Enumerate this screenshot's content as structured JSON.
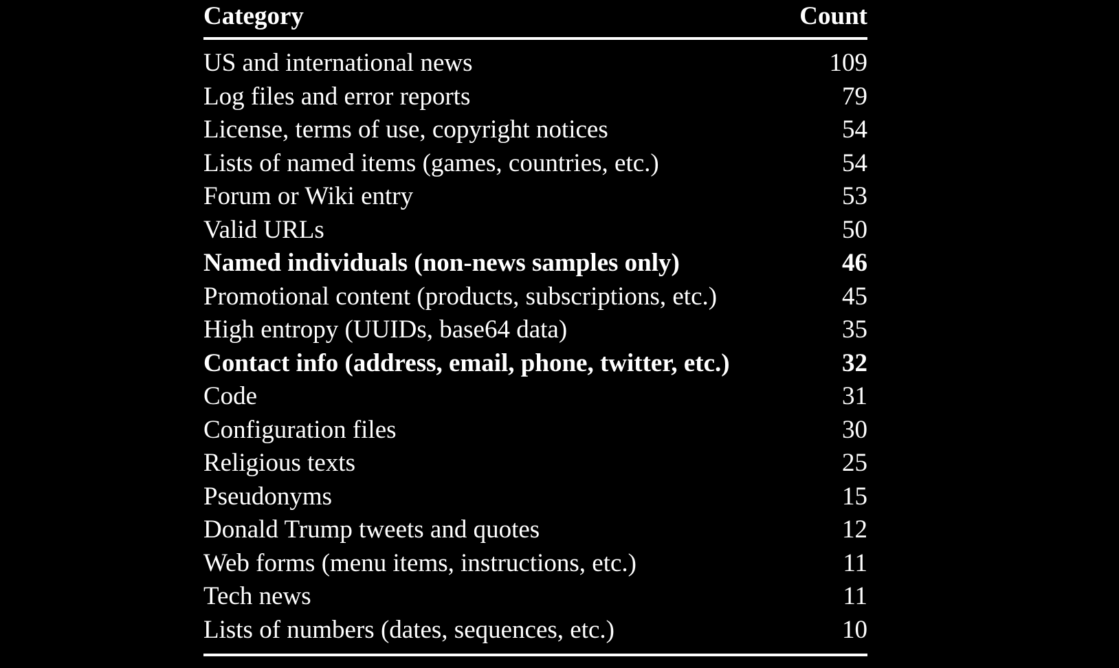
{
  "table": {
    "headers": {
      "category": "Category",
      "count": "Count"
    },
    "rows": [
      {
        "category": "US and international news",
        "count": "109",
        "bold": false
      },
      {
        "category": "Log files and error reports",
        "count": "79",
        "bold": false
      },
      {
        "category": "License, terms of use, copyright notices",
        "count": "54",
        "bold": false
      },
      {
        "category": "Lists of named items (games, countries, etc.)",
        "count": "54",
        "bold": false
      },
      {
        "category": "Forum or Wiki entry",
        "count": "53",
        "bold": false
      },
      {
        "category": "Valid URLs",
        "count": "50",
        "bold": false
      },
      {
        "category": "Named individuals (non-news samples only)",
        "count": "46",
        "bold": true
      },
      {
        "category": "Promotional content (products, subscriptions, etc.)",
        "count": "45",
        "bold": false
      },
      {
        "category": "High entropy (UUIDs, base64 data)",
        "count": "35",
        "bold": false
      },
      {
        "category": "Contact info (address, email, phone, twitter, etc.)",
        "count": "32",
        "bold": true
      },
      {
        "category": "Code",
        "count": "31",
        "bold": false
      },
      {
        "category": "Configuration files",
        "count": "30",
        "bold": false
      },
      {
        "category": "Religious texts",
        "count": "25",
        "bold": false
      },
      {
        "category": "Pseudonyms",
        "count": "15",
        "bold": false
      },
      {
        "category": "Donald Trump tweets and quotes",
        "count": "12",
        "bold": false
      },
      {
        "category": "Web forms (menu items, instructions, etc.)",
        "count": "11",
        "bold": false
      },
      {
        "category": "Tech news",
        "count": "11",
        "bold": false
      },
      {
        "category": "Lists of numbers (dates, sequences, etc.)",
        "count": "10",
        "bold": false
      }
    ]
  }
}
